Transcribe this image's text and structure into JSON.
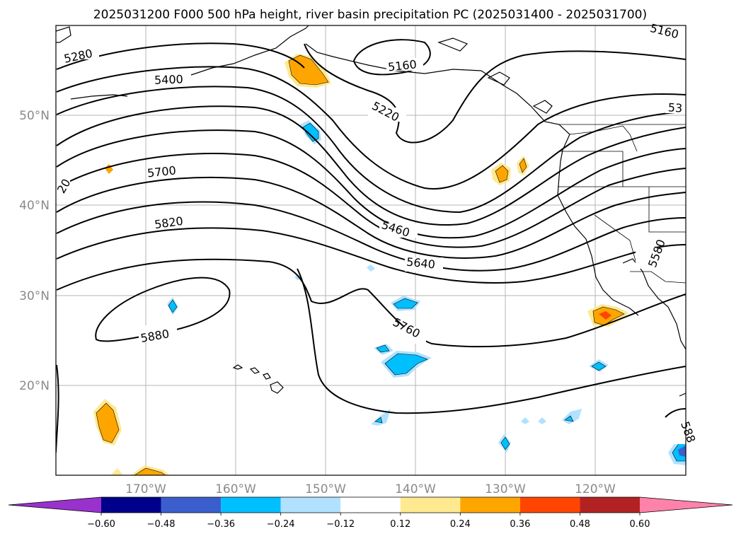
{
  "title": "2025031200 F000 500 hPa height, river basin precipitation PC (2025031400 - 2025031700)",
  "map": {
    "projection": "cylindrical",
    "grid": true,
    "lat_labels": [
      "20°N",
      "30°N",
      "40°N",
      "50°N"
    ],
    "lon_labels": [
      "170°W",
      "160°W",
      "150°W",
      "140°W",
      "130°W",
      "120°W"
    ]
  },
  "contour_labels": [
    "5280",
    "5400",
    "5160",
    "5220",
    "5700",
    "20",
    "5820",
    "5460",
    "5640",
    "5880",
    "5760",
    "5580",
    "588",
    "53",
    "5160"
  ],
  "colorbar": {
    "extend": "both",
    "tick_labels": [
      "−0.60",
      "−0.48",
      "−0.36",
      "−0.24",
      "−0.12",
      "0.12",
      "0.24",
      "0.36",
      "0.48",
      "0.60"
    ],
    "colors": [
      "#9932cc",
      "#00008b",
      "#3a5fcd",
      "#00bfff",
      "#b0e2ff",
      "#ffffff",
      "#ffe991",
      "#ffa500",
      "#ff4500",
      "#b22222",
      "#ff82ab"
    ]
  }
}
